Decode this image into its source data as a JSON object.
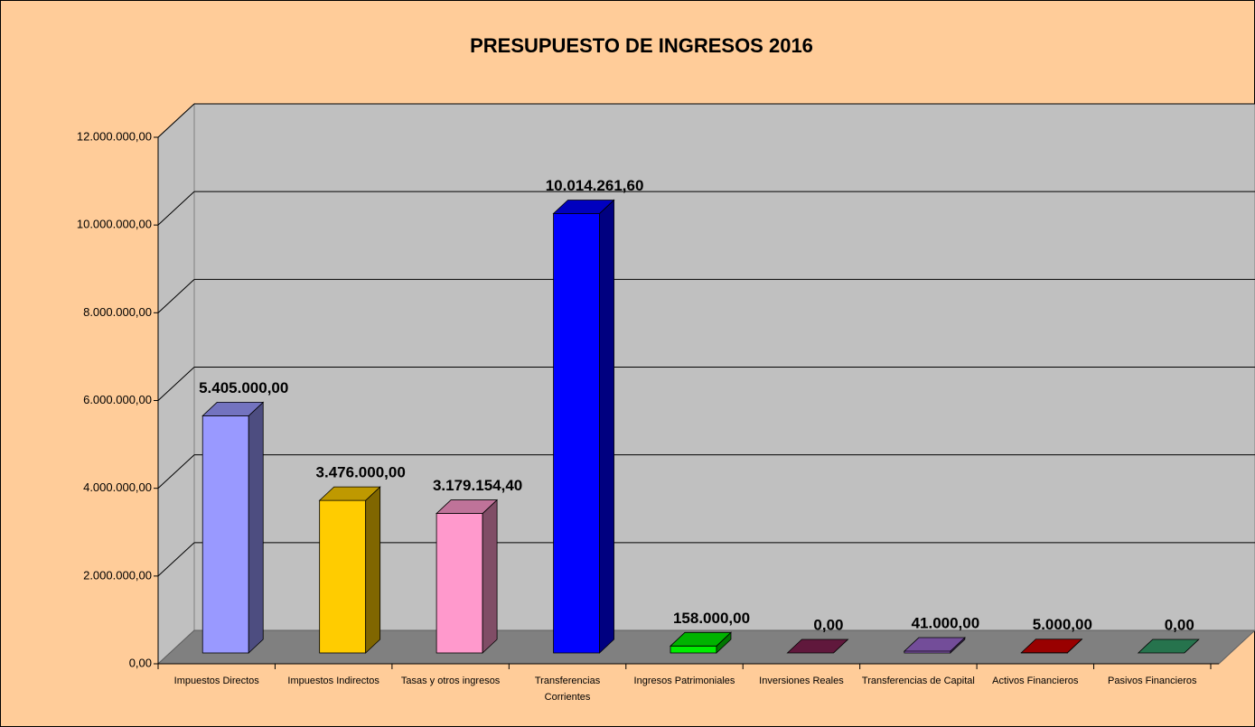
{
  "chart_data": {
    "type": "bar3d",
    "title": "PRESUPUESTO DE INGRESOS 2016",
    "categories": [
      "Impuestos Directos",
      "Impuestos Indirectos",
      "Tasas y otros ingresos",
      "Transferencias Corrientes",
      "Ingresos Patrimoniales",
      "Inversiones Reales",
      "Transferencias de Capital",
      "Activos Financieros",
      "Pasivos Financieros"
    ],
    "values": [
      5405000,
      3476000,
      3179154.4,
      10014261.6,
      158000,
      0,
      41000,
      5000,
      0
    ],
    "value_labels": [
      "5.405.000,00",
      "3.476.000,00",
      "3.179.154,40",
      "10.014.261,60",
      "158.000,00",
      "0,00",
      "41.000,00",
      "5.000,00",
      "0,00"
    ],
    "colors": [
      "#9999FF",
      "#FFCC00",
      "#FF99CC",
      "#0000FF",
      "#00EE00",
      "#802050",
      "#9966CC",
      "#CC0000",
      "#339966"
    ],
    "ylim": [
      0,
      12000000
    ],
    "yticks": [
      {
        "value": 0,
        "label": "0,00"
      },
      {
        "value": 2000000,
        "label": "2.000.000,00"
      },
      {
        "value": 4000000,
        "label": "4.000.000,00"
      },
      {
        "value": 6000000,
        "label": "6.000.000,00"
      },
      {
        "value": 8000000,
        "label": "8.000.000,00"
      },
      {
        "value": 10000000,
        "label": "10.000.000,00"
      },
      {
        "value": 12000000,
        "label": "12.000.000,00"
      }
    ],
    "grid": true
  }
}
